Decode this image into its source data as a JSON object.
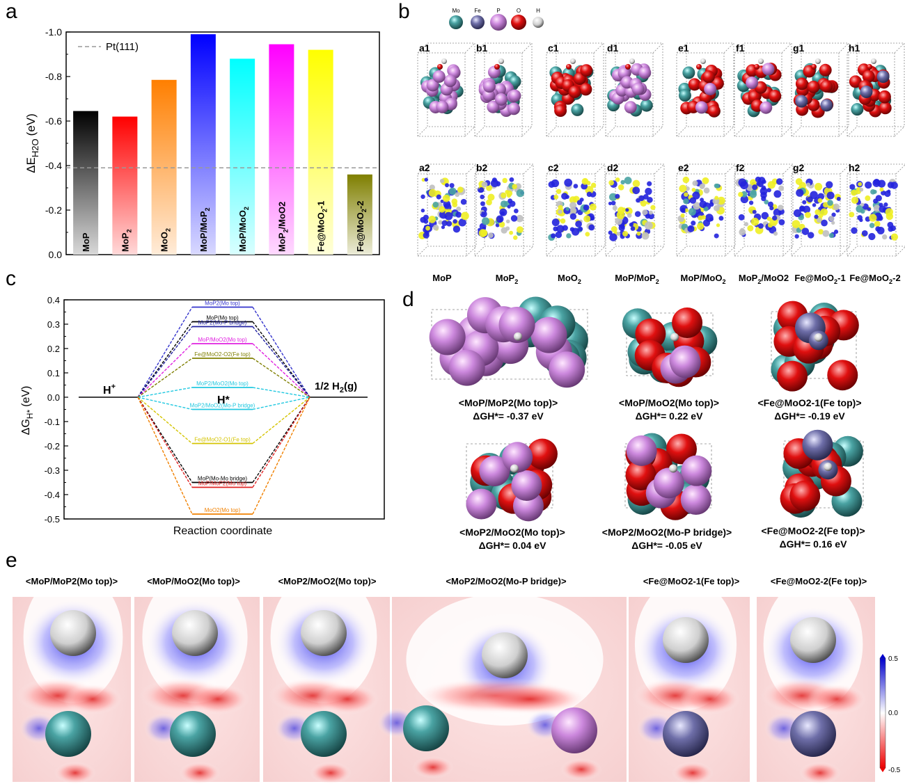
{
  "panels": {
    "a": "a",
    "b": "b",
    "c": "c",
    "d": "d",
    "e": "e"
  },
  "chart_data": [
    {
      "type": "bar",
      "ylabel_main": "ΔE",
      "ylabel_sub": "H2O",
      "ylabel_unit": "(eV)",
      "ylim": [
        0.0,
        -1.0
      ],
      "yticks": [
        0.0,
        -0.2,
        -0.4,
        -0.6,
        -0.8,
        -1.0
      ],
      "ytick_labels": [
        "0.0",
        "-0.2",
        "-0.4",
        "-0.6",
        "-0.8",
        "-1.0"
      ],
      "reference": {
        "name": "Pt(111)",
        "value": -0.39
      },
      "categories": [
        {
          "main": "MoP",
          "sub": "",
          "tail": ""
        },
        {
          "main": "MoP",
          "sub": "2",
          "tail": ""
        },
        {
          "main": "MoO",
          "sub": "2",
          "tail": ""
        },
        {
          "main": "MoP/MoP",
          "sub": "2",
          "tail": ""
        },
        {
          "main": "MoP/MoO",
          "sub": "2",
          "tail": ""
        },
        {
          "main": "MoP",
          "sub": "2",
          "tail": "/MoO2"
        },
        {
          "main": "Fe@MoO",
          "sub": "2",
          "tail": "-1"
        },
        {
          "main": "Fe@MoO",
          "sub": "2",
          "tail": "-2"
        }
      ],
      "values": [
        -0.645,
        -0.62,
        -0.785,
        -0.99,
        -0.88,
        -0.945,
        -0.92,
        -0.36
      ],
      "colors": [
        "#000000",
        "#ff0000",
        "#ff7f00",
        "#0000ff",
        "#00ffff",
        "#ff00ff",
        "#ffff00",
        "#7f7f00"
      ]
    },
    {
      "type": "line",
      "xlabel": "Reaction coordinate",
      "ylabel_main": "ΔG",
      "ylabel_sub": "H*",
      "ylabel_unit": "(eV)",
      "ylim": [
        -0.5,
        0.4
      ],
      "yticks": [
        -0.5,
        -0.4,
        -0.3,
        -0.2,
        -0.1,
        0.0,
        0.1,
        0.2,
        0.3,
        0.4
      ],
      "ytick_labels": [
        "-0.5",
        "-0.4",
        "-0.3",
        "-0.2",
        "-0.1",
        "0.0",
        "0.1",
        "0.2",
        "0.3",
        "0.4"
      ],
      "state_labels": {
        "initial": "H",
        "initial_sup": "+",
        "middle": "H*",
        "final": "1/2 H",
        "final_sub": "2",
        "final_tail": "(g)"
      },
      "series": [
        {
          "label": "MoP2(Mo top)",
          "value": 0.37,
          "color": "#3333cc"
        },
        {
          "label": "MoP(Mo top)",
          "value": 0.31,
          "color": "#000000"
        },
        {
          "label": "MoP2(Mo-P bridge)",
          "value": 0.29,
          "color": "#1f1fa0"
        },
        {
          "label": "MoP/MoO2(Mo top)",
          "value": 0.22,
          "color": "#e020e0"
        },
        {
          "label": "Fe@MoO2-O2(Fe top)",
          "value": 0.16,
          "color": "#7f7f00"
        },
        {
          "label": "MoP2/MoO2(Mo top)",
          "value": 0.04,
          "color": "#20c8e0"
        },
        {
          "label": "MoP2/MoO2(Mo-P bridge)",
          "value": -0.05,
          "color": "#20c8e0"
        },
        {
          "label": "Fe@MoO2-O1(Fe top)",
          "value": -0.19,
          "color": "#d4c400"
        },
        {
          "label": "MoP(Mo-Mo bridge)",
          "value": -0.35,
          "color": "#000000"
        },
        {
          "label": "MoP/MoP2(Mo top)",
          "value": -0.37,
          "color": "#e02020"
        },
        {
          "label": "MoO2(Mo top)",
          "value": -0.48,
          "color": "#f08000"
        }
      ]
    }
  ],
  "panel_b": {
    "legend": [
      {
        "label": "Mo",
        "color": "#4aa3a3"
      },
      {
        "label": "Fe",
        "color": "#7878b8"
      },
      {
        "label": "P",
        "color": "#d59ae6"
      },
      {
        "label": "O",
        "color": "#e01010"
      },
      {
        "label": "H",
        "color": "#e8e8e8"
      }
    ],
    "row1": [
      "a1",
      "b1",
      "c1",
      "d1",
      "e1",
      "f1",
      "g1",
      "h1"
    ],
    "row2": [
      "a2",
      "b2",
      "c2",
      "d2",
      "e2",
      "f2",
      "g2",
      "h2"
    ],
    "names": [
      {
        "main": "MoP",
        "sub": "",
        "tail": ""
      },
      {
        "main": "MoP",
        "sub": "2",
        "tail": ""
      },
      {
        "main": "MoO",
        "sub": "2",
        "tail": ""
      },
      {
        "main": "MoP/MoP",
        "sub": "2",
        "tail": ""
      },
      {
        "main": "MoP/MoO",
        "sub": "2",
        "tail": ""
      },
      {
        "main": "MoP",
        "sub": "2",
        "tail": "/MoO2"
      },
      {
        "main": "Fe@MoO",
        "sub": "2",
        "tail": "-1"
      },
      {
        "main": "Fe@MoO",
        "sub": "2",
        "tail": "-2"
      }
    ]
  },
  "panel_d": {
    "items": [
      {
        "title": "<MoP/MoP2(Mo top)>",
        "dg": "ΔGH*= -0.37 eV"
      },
      {
        "title": "<MoP/MoO2(Mo top)>",
        "dg": "ΔGH*= 0.22 eV"
      },
      {
        "title": "<Fe@MoO2-1(Fe top)>",
        "dg": "ΔGH*= -0.19 eV"
      },
      {
        "title": "<MoP2/MoO2(Mo top)>",
        "dg": "ΔGH*= 0.04 eV"
      },
      {
        "title": "<MoP2/MoO2(Mo-P bridge)>",
        "dg": "ΔGH*= -0.05 eV"
      },
      {
        "title": "<Fe@MoO2-2(Fe top)>",
        "dg": "ΔGH*= 0.16 eV"
      }
    ]
  },
  "panel_e": {
    "titles": [
      "<MoP/MoP2(Mo top)>",
      "<MoP/MoO2(Mo top)>",
      "<MoP2/MoO2(Mo top)>",
      "<MoP2/MoO2(Mo-P bridge)>",
      "<Fe@MoO2-1(Fe top)>",
      "<Fe@MoO2-2(Fe top)>"
    ],
    "colorbar": {
      "max": "0.5",
      "mid": "0.0",
      "min": "-0.5"
    }
  }
}
